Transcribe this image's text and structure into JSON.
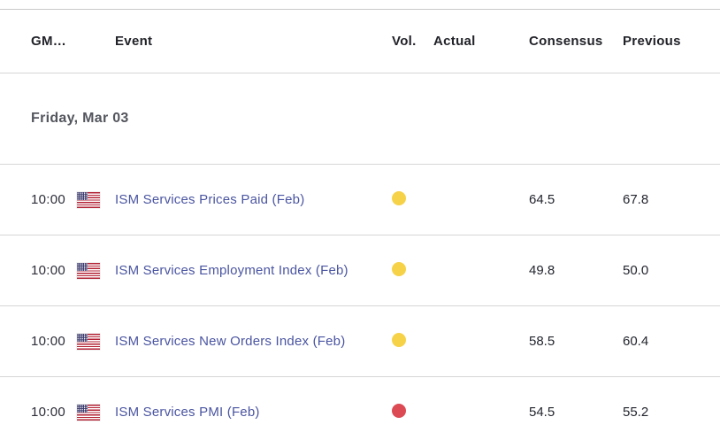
{
  "table": {
    "columns": [
      {
        "key": "gmt",
        "label": "GM…"
      },
      {
        "key": "event",
        "label": "Event"
      },
      {
        "key": "vol",
        "label": "Vol."
      },
      {
        "key": "actual",
        "label": "Actual"
      },
      {
        "key": "consensus",
        "label": "Consensus"
      },
      {
        "key": "previous",
        "label": "Previous"
      }
    ],
    "date_header": "Friday, Mar 03",
    "rows": [
      {
        "time": "10:00",
        "country": "United States",
        "flag_icon": "us-flag-icon",
        "event": "ISM Services Prices Paid (Feb)",
        "volatility": "medium",
        "actual": "",
        "consensus": "64.5",
        "previous": "67.8"
      },
      {
        "time": "10:00",
        "country": "United States",
        "flag_icon": "us-flag-icon",
        "event": "ISM Services Employment Index (Feb)",
        "volatility": "medium",
        "actual": "",
        "consensus": "49.8",
        "previous": "50.0"
      },
      {
        "time": "10:00",
        "country": "United States",
        "flag_icon": "us-flag-icon",
        "event": "ISM Services New Orders Index (Feb)",
        "volatility": "medium",
        "actual": "",
        "consensus": "58.5",
        "previous": "60.4"
      },
      {
        "time": "10:00",
        "country": "United States",
        "flag_icon": "us-flag-icon",
        "event": "ISM Services PMI (Feb)",
        "volatility": "high",
        "actual": "",
        "consensus": "54.5",
        "previous": "55.2"
      }
    ],
    "colors": {
      "volatility_medium_dot": "#f6d248",
      "volatility_high_dot": "#dc4a54",
      "event_link": "#4a55a1",
      "divider": "#d6d6d6",
      "header_text": "#222329",
      "date_text": "#54565e",
      "value_text": "#23252e"
    }
  }
}
